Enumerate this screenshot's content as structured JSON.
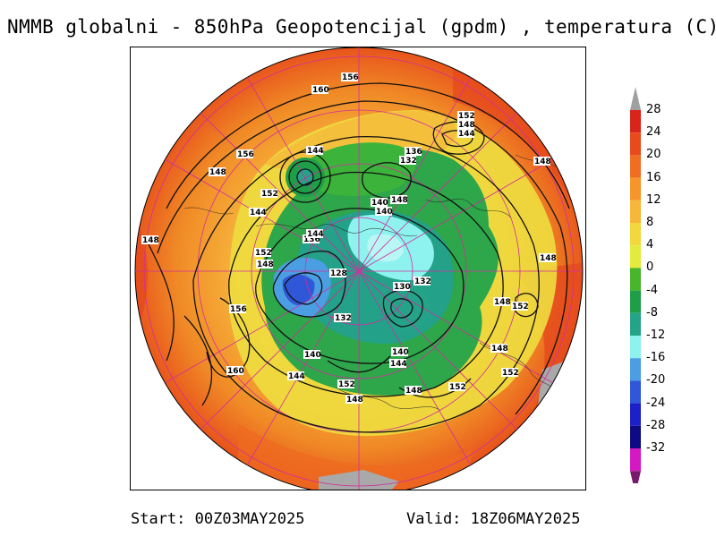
{
  "title": "NMMB globalni - 850hPa Geopotencijal (gpdm) , temperatura (C)",
  "footer": {
    "start": "Start: 00Z03MAY2025",
    "valid": "Valid: 18Z06MAY2025"
  },
  "colorbar": {
    "labels": [
      "28",
      "24",
      "20",
      "16",
      "12",
      "8",
      "4",
      "0",
      "-4",
      "-8",
      "-12",
      "-16",
      "-20",
      "-24",
      "-28",
      "-32"
    ],
    "colors": [
      "#d8251b",
      "#e84a1c",
      "#f06e22",
      "#f6962a",
      "#f7b73a",
      "#f2d83d",
      "#e3ec3c",
      "#48b62c",
      "#1f9e49",
      "#25a388",
      "#8ef3ef",
      "#4c9ee3",
      "#2f57d8",
      "#1c20c8",
      "#0e0a82",
      "#d31ac1"
    ],
    "top_color": "#a0a0a0",
    "bottom_color": "#7a1a6c"
  },
  "contour_labels": [
    {
      "text": "156"
    },
    {
      "text": "160"
    },
    {
      "text": "148"
    },
    {
      "text": "144"
    },
    {
      "text": "140"
    },
    {
      "text": "156"
    },
    {
      "text": "148"
    },
    {
      "text": "152"
    },
    {
      "text": "148"
    },
    {
      "text": "144"
    },
    {
      "text": "136"
    },
    {
      "text": "132"
    },
    {
      "text": "148"
    },
    {
      "text": "140"
    },
    {
      "text": "152"
    },
    {
      "text": "148"
    },
    {
      "text": "144"
    },
    {
      "text": "136"
    },
    {
      "text": "128"
    },
    {
      "text": "144"
    },
    {
      "text": "148"
    },
    {
      "text": "152"
    },
    {
      "text": "156"
    },
    {
      "text": "130"
    },
    {
      "text": "132"
    },
    {
      "text": "152"
    },
    {
      "text": "132"
    },
    {
      "text": "140"
    },
    {
      "text": "148"
    },
    {
      "text": "160"
    },
    {
      "text": "140"
    },
    {
      "text": "144"
    },
    {
      "text": "144"
    },
    {
      "text": "152"
    },
    {
      "text": "148"
    },
    {
      "text": "148"
    },
    {
      "text": "152"
    },
    {
      "text": "148"
    },
    {
      "text": "148"
    },
    {
      "text": "152"
    }
  ]
}
